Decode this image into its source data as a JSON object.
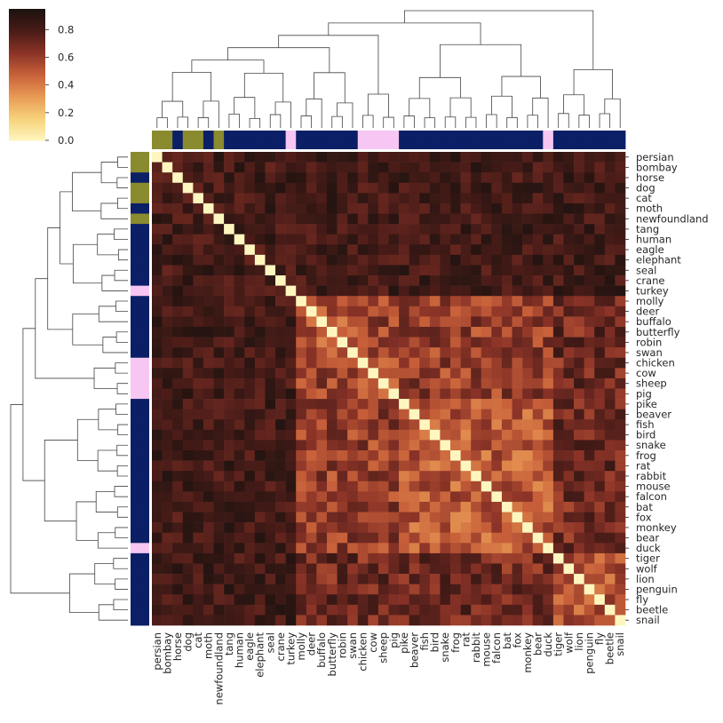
{
  "chart_data": {
    "type": "heatmap",
    "title": "",
    "xlabel": "",
    "ylabel": "",
    "labels": [
      "persian",
      "bombay",
      "horse",
      "dog",
      "cat",
      "moth",
      "newfoundland",
      "tang",
      "human",
      "eagle",
      "elephant",
      "seal",
      "crane",
      "turkey",
      "molly",
      "deer",
      "buffalo",
      "butterfly",
      "robin",
      "swan",
      "chicken",
      "cow",
      "sheep",
      "pig",
      "pike",
      "beaver",
      "fish",
      "bird",
      "snake",
      "frog",
      "rat",
      "rabbit",
      "mouse",
      "falcon",
      "bat",
      "fox",
      "monkey",
      "bear",
      "duck",
      "tiger",
      "wolf",
      "lion",
      "penguin",
      "fly",
      "beetle",
      "snail"
    ],
    "categories_colors": [
      "olive",
      "olive",
      "navy",
      "olive",
      "olive",
      "navy",
      "olive",
      "navy",
      "navy",
      "navy",
      "navy",
      "navy",
      "navy",
      "pink",
      "navy",
      "navy",
      "navy",
      "navy",
      "navy",
      "navy",
      "pink",
      "pink",
      "pink",
      "pink",
      "navy",
      "navy",
      "navy",
      "navy",
      "navy",
      "navy",
      "navy",
      "navy",
      "navy",
      "navy",
      "navy",
      "navy",
      "navy",
      "navy",
      "pink",
      "navy",
      "navy",
      "navy",
      "navy",
      "navy",
      "navy",
      "navy"
    ],
    "category_palette": {
      "olive": "#8a8a2e",
      "navy": "#0b1f66",
      "pink": "#f7c6f2"
    },
    "clusters": [
      [
        0,
        6
      ],
      [
        7,
        13
      ],
      [
        14,
        19
      ],
      [
        20,
        23
      ],
      [
        24,
        38
      ],
      [
        39,
        45
      ]
    ],
    "colorbar": {
      "min": 0.0,
      "max": 0.95,
      "ticks": [
        "0.0",
        "0.2",
        "0.4",
        "0.6",
        "0.8"
      ],
      "tick_values": [
        0.0,
        0.2,
        0.4,
        0.6,
        0.8
      ]
    },
    "colormap": [
      "#fff6bf",
      "#f6d27a",
      "#e99b55",
      "#c8613a",
      "#8b3327",
      "#4a1c18",
      "#1c120f"
    ],
    "diagonal_value": 0.0,
    "grid": false,
    "legend": "colorbar top-left"
  }
}
